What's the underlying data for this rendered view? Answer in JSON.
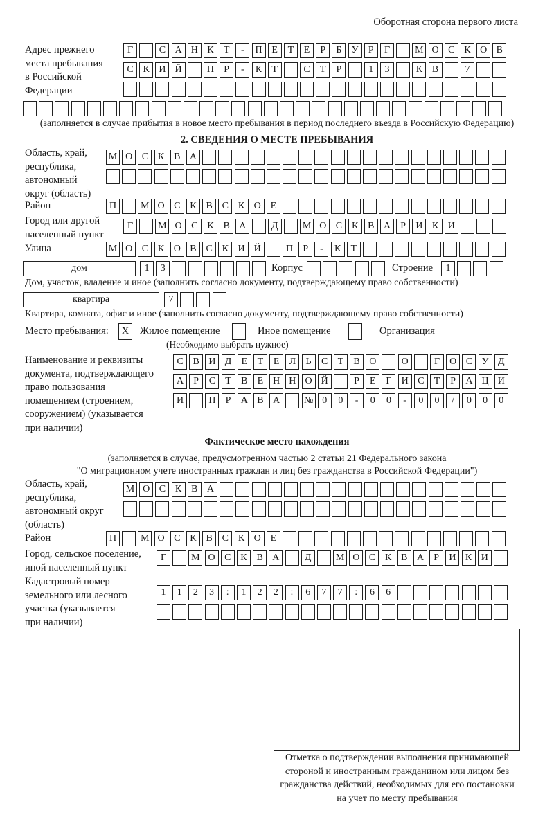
{
  "header": {
    "page_side": "Оборотная сторона первого листа"
  },
  "previous_address": {
    "label": "Адрес прежнего\nместа пребывания\nв Российской\nФедерации",
    "rows": [
      [
        "Г",
        "",
        "С",
        "А",
        "Н",
        "К",
        "Т",
        "-",
        "П",
        "Е",
        "Т",
        "Е",
        "Р",
        "Б",
        "У",
        "Р",
        "Г",
        "",
        "М",
        "О",
        "С",
        "К",
        "О",
        "В"
      ],
      [
        "С",
        "К",
        "И",
        "Й",
        "",
        "П",
        "Р",
        "-",
        "К",
        "Т",
        "",
        "С",
        "Т",
        "Р",
        "",
        "1",
        "3",
        "",
        "К",
        "В",
        "",
        "7",
        "",
        ""
      ],
      [
        "",
        "",
        "",
        "",
        "",
        "",
        "",
        "",
        "",
        "",
        "",
        "",
        "",
        "",
        "",
        "",
        "",
        "",
        "",
        "",
        "",
        "",
        "",
        ""
      ],
      [
        "",
        "",
        "",
        "",
        "",
        "",
        "",
        "",
        "",
        "",
        "",
        "",
        "",
        "",
        "",
        "",
        "",
        "",
        "",
        "",
        "",
        "",
        "",
        "",
        "",
        "",
        "",
        "",
        "",
        ""
      ]
    ],
    "note": "(заполняется в случае прибытия в новое место пребывания в период последнего въезда в Российскую Федерацию)"
  },
  "section2": {
    "title": "2. СВЕДЕНИЯ О МЕСТЕ ПРЕБЫВАНИЯ",
    "region": {
      "label": "Область, край,\nреспублика,\nавтономный\nокруг (область)",
      "rows": [
        [
          "М",
          "О",
          "С",
          "К",
          "В",
          "А",
          "",
          "",
          "",
          "",
          "",
          "",
          "",
          "",
          "",
          "",
          "",
          "",
          "",
          "",
          "",
          "",
          "",
          "",
          ""
        ],
        [
          "",
          "",
          "",
          "",
          "",
          "",
          "",
          "",
          "",
          "",
          "",
          "",
          "",
          "",
          "",
          "",
          "",
          "",
          "",
          "",
          "",
          "",
          "",
          "",
          ""
        ]
      ]
    },
    "district": {
      "label": "Район",
      "cells": [
        "П",
        "",
        "М",
        "О",
        "С",
        "К",
        "В",
        "С",
        "К",
        "О",
        "Е",
        "",
        "",
        "",
        "",
        "",
        "",
        "",
        "",
        "",
        "",
        "",
        "",
        "",
        ""
      ]
    },
    "city": {
      "label": "Город или другой\nнаселенный пункт",
      "cells": [
        "Г",
        "",
        "М",
        "О",
        "С",
        "К",
        "В",
        "А",
        "",
        "Д",
        "",
        "М",
        "О",
        "С",
        "К",
        "В",
        "А",
        "Р",
        "И",
        "К",
        "И",
        "",
        "",
        ""
      ]
    },
    "street": {
      "label": "Улица",
      "cells": [
        "М",
        "О",
        "С",
        "К",
        "О",
        "В",
        "С",
        "К",
        "И",
        "Й",
        "",
        "П",
        "Р",
        "-",
        "К",
        "Т",
        "",
        "",
        "",
        "",
        "",
        "",
        "",
        "",
        ""
      ]
    },
    "house": {
      "type": "дом",
      "cells": [
        "1",
        "3",
        "",
        "",
        "",
        "",
        "",
        ""
      ],
      "korpus_label": "Корпус",
      "korpus_cells": [
        "",
        "",
        "",
        "",
        ""
      ],
      "building_label": "Строение",
      "building_cells": [
        "1",
        "",
        "",
        ""
      ],
      "note": "Дом, участок, владение и иное (заполнить согласно документу, подтверждающему право собственности)"
    },
    "apartment": {
      "type": "квартира",
      "cells": [
        "7",
        "",
        "",
        ""
      ],
      "note": "Квартира, комната, офис и иное (заполнить согласно документу, подтверждающему право собственности)"
    },
    "place_of_stay": {
      "label": "Место пребывания:",
      "options": [
        {
          "label": "Жилое помещение",
          "mark": "X"
        },
        {
          "label": "Иное помещение",
          "mark": ""
        },
        {
          "label": "Организация",
          "mark": ""
        }
      ],
      "note": "(Необходимо выбрать нужное)"
    },
    "document": {
      "label": "Наименование и реквизиты\nдокумента, подтверждающего\nправо пользования\nпомещением (строением,\nсооружением) (указывается\nпри наличии)",
      "rows": [
        [
          "С",
          "В",
          "И",
          "Д",
          "Е",
          "Т",
          "Е",
          "Л",
          "Ь",
          "С",
          "Т",
          "В",
          "О",
          "",
          "О",
          "",
          "Г",
          "О",
          "С",
          "У",
          "Д"
        ],
        [
          "А",
          "Р",
          "С",
          "Т",
          "В",
          "Е",
          "Н",
          "Н",
          "О",
          "Й",
          "",
          "Р",
          "Е",
          "Г",
          "И",
          "С",
          "Т",
          "Р",
          "А",
          "Ц",
          "И"
        ],
        [
          "И",
          "",
          "П",
          "Р",
          "А",
          "В",
          "А",
          "",
          "№",
          "0",
          "0",
          "-",
          "0",
          "0",
          "-",
          "0",
          "0",
          "/",
          "0",
          "0",
          "0"
        ]
      ]
    }
  },
  "actual_location": {
    "title": "Фактическое место нахождения",
    "note_line1": "(заполняется в случае, предусмотренном частью 2 статьи 21 Федерального закона",
    "note_line2": "\"О миграционном учете иностранных граждан и лиц без гражданства в Российской Федерации\")",
    "region": {
      "label": "Область, край,\nреспублика,\nавтономный округ\n(область)",
      "rows": [
        [
          "М",
          "О",
          "С",
          "К",
          "В",
          "А",
          "",
          "",
          "",
          "",
          "",
          "",
          "",
          "",
          "",
          "",
          "",
          "",
          "",
          "",
          "",
          "",
          "",
          ""
        ],
        [
          "",
          "",
          "",
          "",
          "",
          "",
          "",
          "",
          "",
          "",
          "",
          "",
          "",
          "",
          "",
          "",
          "",
          "",
          "",
          "",
          "",
          "",
          "",
          ""
        ]
      ]
    },
    "district": {
      "label": "Район",
      "cells": [
        "П",
        "",
        "М",
        "О",
        "С",
        "К",
        "В",
        "С",
        "К",
        "О",
        "Е",
        "",
        "",
        "",
        "",
        "",
        "",
        "",
        "",
        "",
        "",
        "",
        "",
        "",
        ""
      ]
    },
    "city": {
      "label": "Город, сельское поселение,\nиной населенный пункт",
      "cells": [
        "Г",
        "",
        "М",
        "О",
        "С",
        "К",
        "В",
        "А",
        "",
        "Д",
        "",
        "М",
        "О",
        "С",
        "К",
        "В",
        "А",
        "Р",
        "И",
        "К",
        "И",
        ""
      ]
    },
    "cadastral": {
      "label": "Кадастровый номер\nземельного или лесного\nучастка (указывается\nпри наличии)",
      "rows": [
        [
          "1",
          "1",
          "2",
          "3",
          ":",
          "1",
          "2",
          "2",
          ":",
          "6",
          "7",
          "7",
          ":",
          "6",
          "6",
          "",
          "",
          "",
          "",
          "",
          "",
          ""
        ],
        [
          "",
          "",
          "",
          "",
          "",
          "",
          "",
          "",
          "",
          "",
          "",
          "",
          "",
          "",
          "",
          "",
          "",
          "",
          "",
          "",
          "",
          ""
        ]
      ]
    }
  },
  "confirmation": {
    "caption": "Отметка о подтверждении выполнения принимающей\nстороной и иностранным гражданином или лицом без\nгражданства действий, необходимых для его постановки\nна учет по месту пребывания"
  }
}
